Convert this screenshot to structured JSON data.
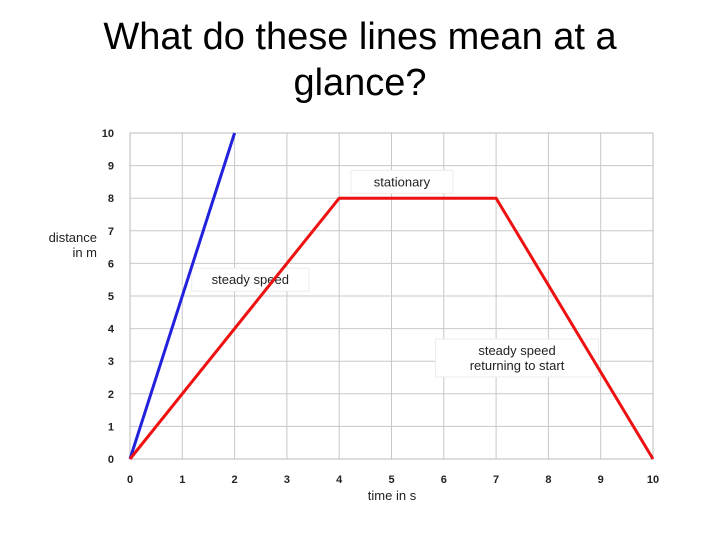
{
  "slide": {
    "title_line1": "What do these lines mean at a",
    "title_line2": "glance?"
  },
  "chart_data": {
    "type": "line",
    "title": "",
    "xlabel": "time in s",
    "ylabel_line1": "distance",
    "ylabel_line2": "in m",
    "xlim": [
      0,
      10
    ],
    "ylim": [
      0,
      10
    ],
    "x_ticks": [
      0,
      1,
      2,
      3,
      4,
      5,
      6,
      7,
      8,
      9,
      10
    ],
    "y_ticks": [
      0,
      1,
      2,
      3,
      4,
      5,
      6,
      7,
      8,
      9,
      10
    ],
    "grid": true,
    "series": [
      {
        "color": "#2222dd",
        "x": [
          0,
          2
        ],
        "y": [
          0,
          10
        ]
      },
      {
        "color": "#ee1111",
        "x": [
          0,
          4,
          7,
          10
        ],
        "y": [
          0,
          8,
          8,
          0
        ]
      }
    ],
    "annotations": [
      {
        "id": "stationary",
        "lines": [
          "stationary"
        ],
        "x": 5.2,
        "y": 8.5
      },
      {
        "id": "steady-speed",
        "lines": [
          "steady speed"
        ],
        "x": 2.3,
        "y": 5.5
      },
      {
        "id": "steady-speed-return",
        "lines": [
          "steady speed",
          "returning to start"
        ],
        "x": 7.4,
        "y": 3.1
      }
    ]
  }
}
